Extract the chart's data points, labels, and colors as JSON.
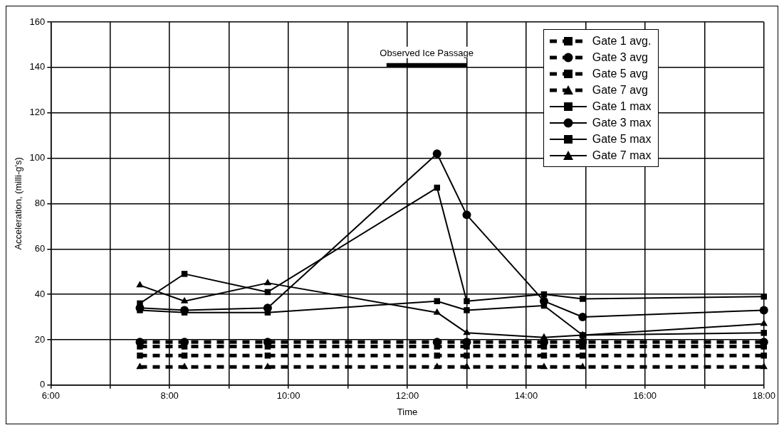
{
  "chart_data": {
    "type": "line",
    "xlabel": "Time",
    "ylabel": "Acceleration, (milli-g's)",
    "x": [
      7.5,
      8.25,
      9.65,
      12.5,
      13.0,
      14.3,
      14.95,
      18
    ],
    "xlim": [
      6,
      18
    ],
    "xticks": [
      {
        "value": 6,
        "label": "6:00"
      },
      {
        "value": 7,
        "label": null
      },
      {
        "value": 8,
        "label": "8:00"
      },
      {
        "value": 9,
        "label": null
      },
      {
        "value": 10,
        "label": "10:00"
      },
      {
        "value": 11,
        "label": null
      },
      {
        "value": 12,
        "label": "12:00"
      },
      {
        "value": 13,
        "label": null
      },
      {
        "value": 14,
        "label": "14:00"
      },
      {
        "value": 15,
        "label": null
      },
      {
        "value": 16,
        "label": "16:00"
      },
      {
        "value": 17,
        "label": null
      },
      {
        "value": 18,
        "label": "18:00"
      }
    ],
    "ylim": [
      0,
      160
    ],
    "yticks": [
      0,
      20,
      40,
      60,
      80,
      100,
      120,
      140,
      160
    ],
    "grid": true,
    "legend": "top right",
    "annotations": [
      {
        "text": "Observed Ice Passage",
        "x": 12.325,
        "y": 141
      }
    ],
    "series": [
      {
        "name": "Gate 1 avg.",
        "color": "#000000",
        "marker": "square",
        "line_style": "dashed",
        "values": [
          17,
          17,
          17,
          17,
          17,
          17,
          17,
          17
        ]
      },
      {
        "name": "Gate 3 avg",
        "color": "#000000",
        "marker": "circle",
        "line_style": "dashed",
        "values": [
          19,
          19,
          19,
          19,
          19,
          19,
          19,
          19
        ]
      },
      {
        "name": "Gate 5 avg",
        "color": "#000000",
        "marker": "square",
        "line_style": "dashed",
        "values": [
          13,
          13,
          13,
          13,
          13,
          13,
          13,
          13
        ]
      },
      {
        "name": "Gate 7 avg",
        "color": "#000000",
        "marker": "triangle",
        "line_style": "dashed",
        "values": [
          8,
          8,
          8,
          8,
          8,
          8,
          8,
          8
        ]
      },
      {
        "name": "Gate 1 max",
        "color": "#000000",
        "marker": "square",
        "line_style": "solid",
        "values": [
          36,
          49,
          41,
          87,
          37,
          40,
          38,
          39
        ]
      },
      {
        "name": "Gate 3 max",
        "color": "#000000",
        "marker": "circle",
        "line_style": "solid",
        "values": [
          34,
          33,
          34,
          102,
          75,
          37,
          30,
          33
        ]
      },
      {
        "name": "Gate 5 max",
        "color": "#000000",
        "marker": "square",
        "line_style": "solid",
        "values": [
          33,
          32,
          32,
          37,
          33,
          35,
          22,
          23
        ]
      },
      {
        "name": "Gate 7 max",
        "color": "#000000",
        "marker": "triangle",
        "line_style": "solid",
        "values": [
          44,
          37,
          45,
          32,
          23,
          21,
          22,
          27
        ]
      },
      {
        "color": "#000000",
        "marker": "none",
        "x": [
          11.65,
          13.0
        ],
        "values": [
          141,
          141
        ]
      }
    ]
  }
}
